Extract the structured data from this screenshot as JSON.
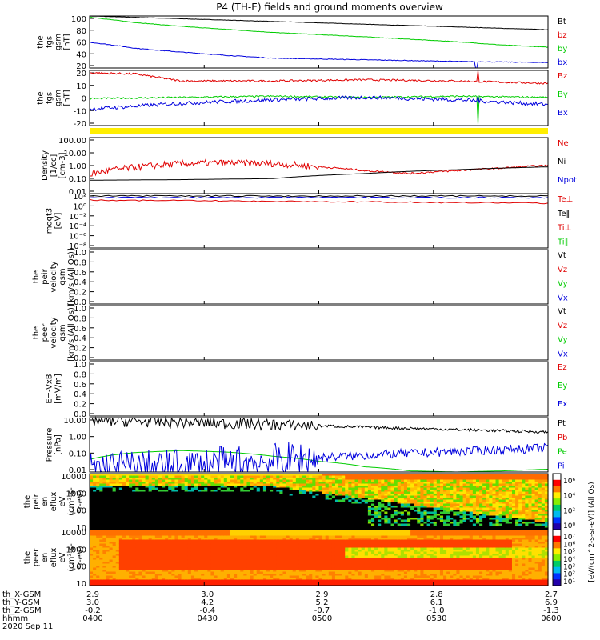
{
  "title": "P4 (TH-E) fields and ground moments overview",
  "colors": {
    "black": "#000000",
    "red": "#e00000",
    "green": "#00cc00",
    "blue": "#0000dd",
    "yellow": "#ffee00"
  },
  "chart_data": {
    "type": "line",
    "x_range": [
      "0400",
      "0600"
    ],
    "xticks": [
      "0400",
      "0430",
      "0500",
      "0530",
      "0600"
    ],
    "ephemeris": {
      "rows": [
        {
          "label": "th_X-GSM",
          "values": [
            "2.9",
            "3.0",
            "2.9",
            "2.8",
            "2.7"
          ]
        },
        {
          "label": "th_Y-GSM",
          "values": [
            "3.0",
            "4.2",
            "5.2",
            "6.1",
            "6.9"
          ]
        },
        {
          "label": "th_Z-GSM",
          "values": [
            "-0.2",
            "-0.4",
            "-0.7",
            "-1.0",
            "-1.3"
          ]
        },
        {
          "label": "hhmm",
          "values": [
            "0400",
            "0430",
            "0500",
            "0530",
            "0600"
          ]
        }
      ],
      "date": "2020 Sep 11"
    },
    "panels": [
      {
        "ylabel": [
          "the",
          "fgs",
          "gsm",
          "[nT]"
        ],
        "yticks": [
          "100",
          "80",
          "60",
          "40",
          "20"
        ],
        "legend": [
          {
            "name": "Bt",
            "color": "black"
          },
          {
            "name": "bz",
            "color": "red"
          },
          {
            "name": "by",
            "color": "green"
          },
          {
            "name": "bx",
            "color": "blue"
          }
        ],
        "series": [
          {
            "name": "Bt",
            "color": "black",
            "x": [
              0,
              0.2,
              0.4,
              0.6,
              0.8,
              1
            ],
            "y": [
              105,
              100,
              95,
              90,
              85,
              80
            ]
          },
          {
            "name": "by",
            "color": "green",
            "x": [
              0,
              0.1,
              0.2,
              0.4,
              0.6,
              0.8,
              0.9,
              1
            ],
            "y": [
              103,
              93,
              86,
              75,
              67,
              58,
              52,
              48
            ]
          },
          {
            "name": "bx",
            "color": "blue",
            "x": [
              0,
              0.05,
              0.1,
              0.2,
              0.3,
              0.4,
              0.6,
              0.8,
              1
            ],
            "y": [
              57,
              52,
              46,
              39,
              33,
              28,
              25,
              22,
              20
            ]
          }
        ]
      },
      {
        "ylabel": [
          "the",
          "fgs",
          "gsm",
          "[nT]"
        ],
        "yticks": [
          "20",
          "10",
          "0",
          "-10",
          "-20"
        ],
        "legend": [
          {
            "name": "Bz",
            "color": "red"
          },
          {
            "name": "By",
            "color": "green"
          },
          {
            "name": "Bx",
            "color": "blue"
          }
        ],
        "series": [
          {
            "name": "Bz",
            "color": "red",
            "x": [
              0,
              0.1,
              0.2,
              0.4,
              0.6,
              0.8,
              0.9,
              1
            ],
            "y": [
              20,
              19,
              13,
              13,
              14,
              13,
              12,
              11
            ]
          },
          {
            "name": "By",
            "color": "green",
            "x": [
              0,
              0.2,
              0.4,
              0.6,
              0.8,
              1
            ],
            "y": [
              -2,
              -1,
              0,
              -1,
              0,
              -1
            ]
          },
          {
            "name": "Bx",
            "color": "blue",
            "x": [
              0,
              0.2,
              0.4,
              0.6,
              0.8,
              1
            ],
            "y": [
              -11,
              -6,
              -3,
              -1,
              -3,
              -7
            ]
          }
        ]
      },
      {
        "ylabel": [
          "Density",
          "[1/cc]",
          "[cm-3]"
        ],
        "yticks": [
          "100.00",
          "10.00",
          "1.00",
          "0.10",
          "0.01"
        ],
        "legend": [
          {
            "name": "Ne",
            "color": "red"
          },
          {
            "name": "Ni",
            "color": "black"
          },
          {
            "name": "Npot",
            "color": "blue"
          }
        ],
        "series": [
          {
            "name": "Ne",
            "color": "red",
            "x": [
              0,
              0.1,
              0.2,
              0.3,
              0.4,
              0.5,
              0.6,
              0.7,
              0.8,
              0.9,
              1
            ],
            "y": [
              0.25,
              0.9,
              1.8,
              2.1,
              1.8,
              1.0,
              0.5,
              0.3,
              0.5,
              0.8,
              1.3
            ]
          },
          {
            "name": "Ni",
            "color": "black",
            "x": [
              0,
              0.2,
              0.4,
              0.6,
              0.8,
              1
            ],
            "y": [
              0.09,
              0.1,
              0.12,
              0.3,
              0.6,
              1.0
            ]
          }
        ]
      },
      {
        "ylabel": [
          "moqt3",
          "[eV]"
        ],
        "yticks": [
          "10²",
          "10⁰",
          "10⁻²",
          "10⁻⁴",
          "10⁻⁶",
          "10⁻⁸"
        ],
        "legend": [
          {
            "name": "Te⊥",
            "color": "red"
          },
          {
            "name": "Te∥",
            "color": "black"
          },
          {
            "name": "Ti⊥",
            "color": "red"
          },
          {
            "name": "Ti∥",
            "color": "green"
          }
        ]
      },
      {
        "ylabel": [
          "the",
          "peir",
          "velocity",
          "gsm",
          "[km/s (All Qs)]"
        ],
        "yticks": [
          "1.0",
          "0.8",
          "0.6",
          "0.4",
          "0.2",
          "0.0"
        ],
        "legend": [
          {
            "name": "Vt",
            "color": "black"
          },
          {
            "name": "Vz",
            "color": "red"
          },
          {
            "name": "Vy",
            "color": "green"
          },
          {
            "name": "Vx",
            "color": "blue"
          }
        ]
      },
      {
        "ylabel": [
          "the",
          "peer",
          "velocity",
          "gsm",
          "[km/s (All Qs)]"
        ],
        "yticks": [
          "1.0",
          "0.8",
          "0.6",
          "0.4",
          "0.2",
          "0.0"
        ],
        "legend": [
          {
            "name": "Vt",
            "color": "black"
          },
          {
            "name": "Vz",
            "color": "red"
          },
          {
            "name": "Vy",
            "color": "green"
          },
          {
            "name": "Vx",
            "color": "blue"
          }
        ]
      },
      {
        "ylabel": [
          "E=-VxB",
          "[mV/m]"
        ],
        "yticks": [
          "1.0",
          "0.8",
          "0.6",
          "0.4",
          "0.2",
          "0.0"
        ],
        "legend": [
          {
            "name": "Ez",
            "color": "red"
          },
          {
            "name": "Ey",
            "color": "green"
          },
          {
            "name": "Ex",
            "color": "blue"
          }
        ]
      },
      {
        "ylabel": [
          "Pressure",
          "[nPa]"
        ],
        "yticks": [
          "10.00",
          "1.00",
          "0.10",
          "0.01"
        ],
        "legend": [
          {
            "name": "Pt",
            "color": "black"
          },
          {
            "name": "Pb",
            "color": "red"
          },
          {
            "name": "Pe",
            "color": "green"
          },
          {
            "name": "Pi",
            "color": "blue"
          }
        ],
        "series": [
          {
            "name": "Pt",
            "color": "black",
            "x": [
              0,
              0.2,
              0.4,
              0.6,
              0.8,
              1
            ],
            "y": [
              27,
              20,
              14,
              9,
              6,
              4
            ]
          },
          {
            "name": "Pe",
            "color": "green",
            "x": [
              0,
              0.1,
              0.2,
              0.3,
              0.4,
              0.5,
              0.6,
              0.7,
              0.8,
              0.9,
              1
            ],
            "y": [
              0.04,
              0.13,
              0.18,
              0.14,
              0.07,
              0.03,
              0.012,
              0.006,
              0.005,
              0.006,
              0.008
            ]
          },
          {
            "name": "Pi",
            "color": "blue",
            "x": [
              0,
              0.2,
              0.4,
              0.6,
              0.8,
              1
            ],
            "y": [
              0.01,
              0.012,
              0.03,
              0.08,
              0.15,
              0.28
            ]
          }
        ]
      },
      {
        "ylabel": [
          "the",
          "peir",
          "en",
          "eflux",
          "eV",
          "(cm²-s-",
          "sr-eV)"
        ],
        "yticks": [
          "10000",
          "1000",
          "100",
          "10"
        ]
      },
      {
        "ylabel": [
          "the",
          "peer",
          "en",
          "eflux",
          "eV",
          "(cm²-s-",
          "sr-eV)"
        ],
        "yticks": [
          "10000",
          "1000",
          "100",
          "10"
        ]
      }
    ],
    "colorbar": {
      "label": "[eV/(cm^2-s-sr-eV)] (All Qs)",
      "peir_ticks": [
        "10⁶",
        "10⁴",
        "10²",
        "10⁰"
      ],
      "peer_ticks": [
        "10⁷",
        "10⁶",
        "10⁵",
        "10⁴",
        "10³",
        "10²",
        "10¹"
      ]
    }
  }
}
